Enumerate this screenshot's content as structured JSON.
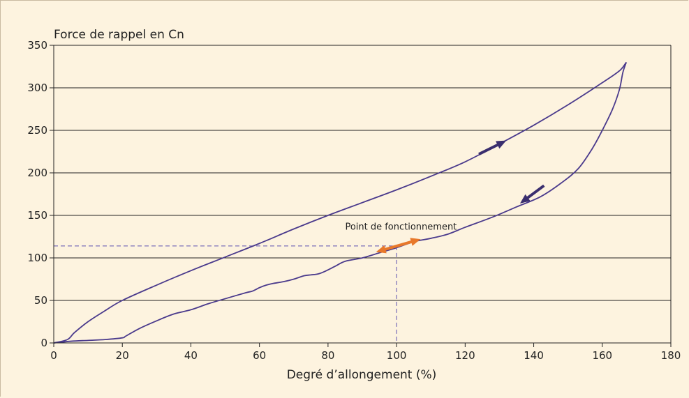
{
  "chart_data": {
    "type": "line",
    "title": "",
    "ylabel": "Force de rappel en Cn",
    "xlabel": "Degré d’allongement (%)",
    "xlim": [
      0,
      180
    ],
    "ylim": [
      0,
      350
    ],
    "x_ticks": [
      0,
      20,
      40,
      60,
      80,
      100,
      120,
      140,
      160,
      180
    ],
    "y_ticks": [
      0,
      50,
      100,
      150,
      200,
      250,
      300,
      350
    ],
    "grid": "horizontal",
    "series": [
      {
        "direction": "loading",
        "color": "#4a3a8c",
        "points": [
          [
            0,
            0
          ],
          [
            4,
            4
          ],
          [
            6,
            12
          ],
          [
            10,
            25
          ],
          [
            15,
            38
          ],
          [
            20,
            50
          ],
          [
            30,
            68
          ],
          [
            40,
            85
          ],
          [
            50,
            101
          ],
          [
            60,
            117
          ],
          [
            70,
            134
          ],
          [
            80,
            150
          ],
          [
            90,
            165
          ],
          [
            100,
            180
          ],
          [
            110,
            196
          ],
          [
            120,
            213
          ],
          [
            130,
            234
          ],
          [
            140,
            256
          ],
          [
            150,
            280
          ],
          [
            160,
            306
          ],
          [
            165,
            320
          ],
          [
            167,
            330
          ]
        ]
      },
      {
        "direction": "unloading",
        "color": "#4a3a8c",
        "points": [
          [
            167,
            330
          ],
          [
            166,
            318
          ],
          [
            165,
            298
          ],
          [
            163,
            275
          ],
          [
            160,
            250
          ],
          [
            157,
            228
          ],
          [
            153,
            205
          ],
          [
            148,
            188
          ],
          [
            142,
            172
          ],
          [
            135,
            160
          ],
          [
            128,
            148
          ],
          [
            120,
            136
          ],
          [
            115,
            128
          ],
          [
            110,
            123
          ],
          [
            105,
            119
          ],
          [
            100,
            112
          ],
          [
            95,
            106
          ],
          [
            90,
            100
          ],
          [
            85,
            96
          ],
          [
            82,
            90
          ],
          [
            79,
            84
          ],
          [
            77,
            81
          ],
          [
            75,
            80
          ],
          [
            73,
            79
          ],
          [
            70,
            75
          ],
          [
            67,
            72
          ],
          [
            64,
            70
          ],
          [
            62,
            68
          ],
          [
            60,
            65
          ],
          [
            58,
            61
          ],
          [
            56,
            59
          ],
          [
            50,
            52
          ],
          [
            45,
            46
          ],
          [
            40,
            39
          ],
          [
            35,
            34
          ],
          [
            30,
            26
          ],
          [
            25,
            17
          ],
          [
            21,
            8
          ],
          [
            20,
            6
          ],
          [
            15,
            4
          ],
          [
            10,
            3
          ],
          [
            5,
            2
          ],
          [
            0,
            0
          ]
        ]
      }
    ],
    "arrows": [
      {
        "color": "#3a2e6e",
        "from": [
          124,
          222
        ],
        "to": [
          132,
          238
        ]
      },
      {
        "color": "#3a2e6e",
        "from": [
          143,
          185
        ],
        "to": [
          136,
          164
        ]
      }
    ],
    "annotations": [
      {
        "label": "Point de fonctionnement",
        "x": 100,
        "y": 114,
        "text_x": 85,
        "text_y": 133,
        "color": "#e8782a",
        "arrow_from": [
          94,
          107
        ],
        "arrow_to": [
          107,
          122
        ],
        "guide_color": "#5b4fb0"
      }
    ]
  }
}
